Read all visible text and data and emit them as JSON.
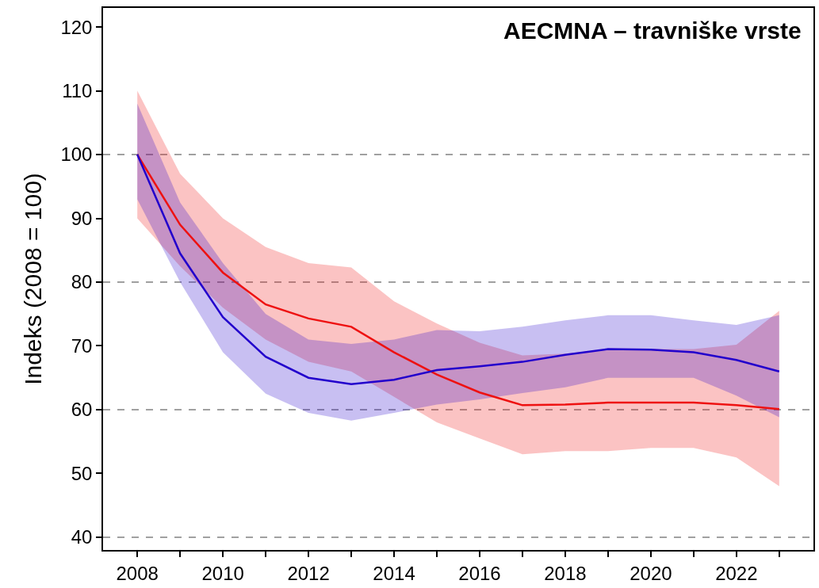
{
  "chart_data": {
    "type": "line",
    "title": "AECMNA – travniške vrste",
    "ylabel": "Indeks (2008 = 100)",
    "x": [
      2008,
      2009,
      2010,
      2011,
      2012,
      2013,
      2014,
      2015,
      2016,
      2017,
      2018,
      2019,
      2020,
      2021,
      2022,
      2023
    ],
    "series": [
      {
        "color": "#ee1111",
        "values": [
          100,
          89,
          81.5,
          76.5,
          74.3,
          73,
          69,
          65.5,
          62.7,
          60.7,
          60.8,
          61.1,
          61.1,
          61.1,
          60.7,
          60.1
        ],
        "lower": [
          90,
          82.5,
          76,
          71,
          67.5,
          66,
          62,
          58,
          55.5,
          53,
          53.5,
          53.5,
          54,
          54,
          52.5,
          48
        ],
        "upper": [
          110,
          97,
          90,
          85.5,
          83,
          82.3,
          77,
          73.5,
          70.5,
          68.5,
          68.8,
          69.5,
          69.5,
          69.5,
          70.2,
          75.5
        ]
      },
      {
        "color": "#2200cc",
        "values": [
          100,
          84.5,
          74.5,
          68.3,
          65,
          64,
          64.7,
          66.2,
          66.8,
          67.5,
          68.6,
          69.5,
          69.4,
          69,
          67.8,
          66
        ],
        "lower": [
          93,
          80,
          69,
          62.5,
          59.5,
          58.3,
          59.5,
          60.8,
          61.6,
          62.6,
          63.5,
          65,
          65,
          65,
          62.2,
          58.8
        ],
        "upper": [
          108,
          92.5,
          83,
          75,
          71,
          70.3,
          71,
          72.5,
          72.3,
          73,
          74,
          74.8,
          74.8,
          74,
          73.3,
          74.8
        ]
      }
    ],
    "xlim": [
      2007.2,
      2023.8
    ],
    "ylim": [
      38,
      123
    ],
    "xticks": [
      2008,
      {
        "value": 2009,
        "label": null
      },
      2010,
      {
        "value": 2011,
        "label": null
      },
      2012,
      {
        "value": 2013,
        "label": null
      },
      2014,
      {
        "value": 2015,
        "label": null
      },
      2016,
      {
        "value": 2017,
        "label": null
      },
      2018,
      {
        "value": 2019,
        "label": null
      },
      2020,
      {
        "value": 2021,
        "label": null
      },
      2022,
      {
        "value": 2023,
        "label": null
      }
    ],
    "yticks": [
      40,
      50,
      60,
      70,
      80,
      90,
      100,
      110,
      120
    ],
    "ref_lines": [
      {
        "axis": "y",
        "value": 40,
        "color": "#a0a0a0",
        "line_style": "dashed"
      },
      {
        "axis": "y",
        "value": 60,
        "color": "#a0a0a0",
        "line_style": "dashed"
      },
      {
        "axis": "y",
        "value": 80,
        "color": "#a0a0a0",
        "line_style": "dashed"
      },
      {
        "axis": "y",
        "value": 100,
        "color": "#a0a0a0",
        "line_style": "dashed"
      }
    ],
    "grid": false,
    "line_style": "solid",
    "marker": "none"
  }
}
